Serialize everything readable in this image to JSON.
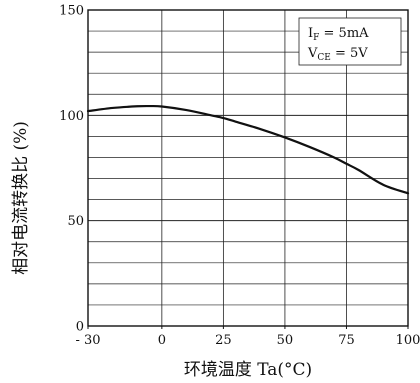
{
  "chart_data": {
    "type": "line",
    "title": "",
    "xlabel": "环境温度 Ta(°C)",
    "ylabel": "相对电流转换比 (%)",
    "xlim": [
      -30,
      100
    ],
    "ylim": [
      0,
      150
    ],
    "xticks": [
      -30,
      0,
      25,
      50,
      75,
      100
    ],
    "xtick_labels": [
      "- 30",
      "0",
      "25",
      "50",
      "75",
      "100"
    ],
    "yticks": [
      0,
      50,
      100,
      150
    ],
    "ytick_labels": [
      "0",
      "50",
      "100",
      "150"
    ],
    "grid": true,
    "legend_position": "top-right",
    "conditions": [
      {
        "symbol": "I",
        "sub": "F",
        "text": " = 5mA"
      },
      {
        "symbol": "V",
        "sub": "CE",
        "text": " = 5V"
      }
    ],
    "series": [
      {
        "x": [
          -30,
          -20,
          -10,
          -5,
          0,
          10,
          20,
          25,
          30,
          40,
          50,
          60,
          70,
          75,
          80,
          90,
          100
        ],
        "y": [
          102,
          103.5,
          104.3,
          104.4,
          104.2,
          102.5,
          100,
          98.7,
          97,
          93.5,
          89.5,
          85,
          80,
          77,
          74,
          67,
          63
        ]
      }
    ],
    "colors": {
      "line": "#111111",
      "grid": "#222222",
      "background": "#ffffff"
    }
  }
}
